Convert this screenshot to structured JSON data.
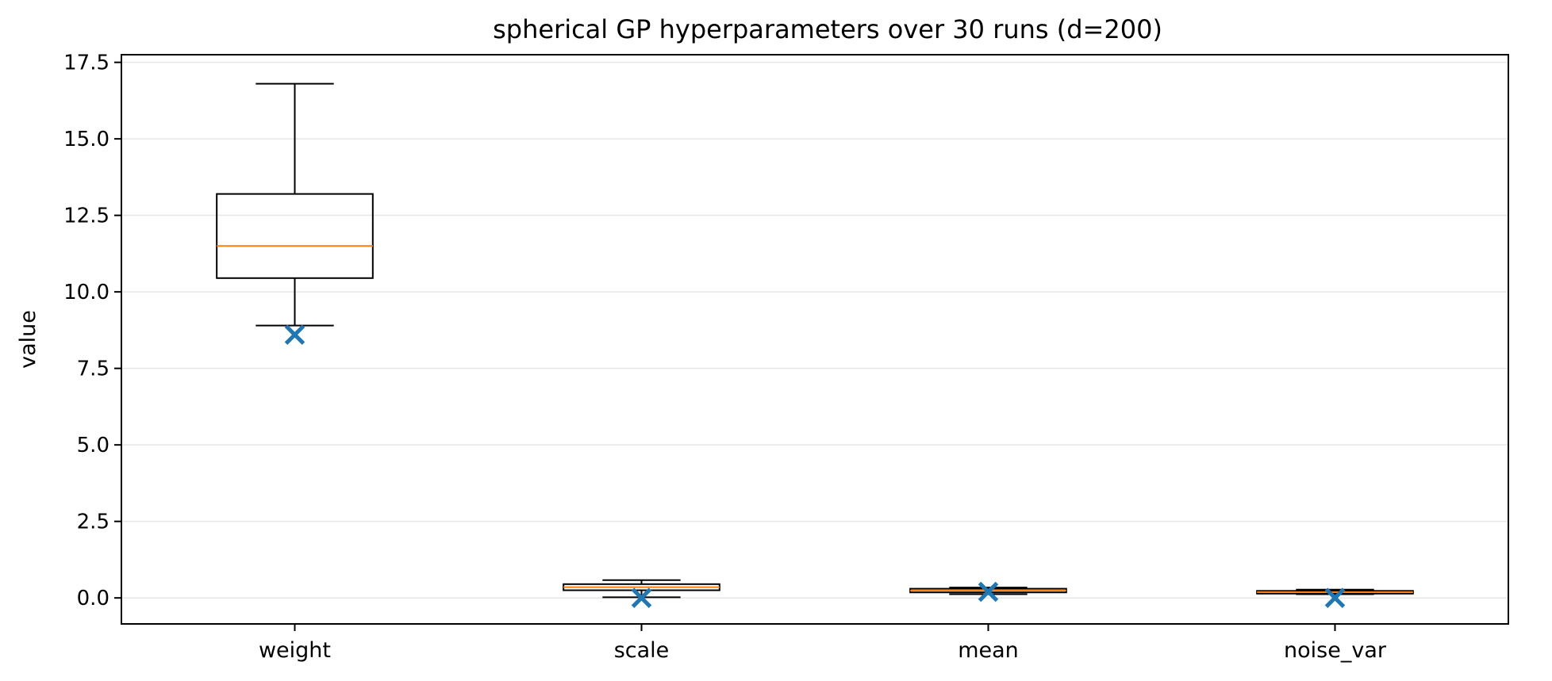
{
  "chart_data": {
    "type": "box",
    "title": "spherical GP hyperparameters over 30 runs (d=200)",
    "xlabel": "",
    "ylabel": "value",
    "ylim": [
      -0.85,
      17.75
    ],
    "yticks": [
      0.0,
      2.5,
      5.0,
      7.5,
      10.0,
      12.5,
      15.0,
      17.5
    ],
    "ytick_labels": [
      "0.0",
      "2.5",
      "5.0",
      "7.5",
      "10.0",
      "12.5",
      "15.0",
      "17.5"
    ],
    "grid": "y",
    "categories": [
      "weight",
      "scale",
      "mean",
      "noise_var"
    ],
    "boxes": [
      {
        "category": "weight",
        "whisker_low": 8.9,
        "q1": 10.45,
        "median": 11.5,
        "q3": 13.2,
        "whisker_high": 16.8
      },
      {
        "category": "scale",
        "whisker_low": 0.02,
        "q1": 0.25,
        "median": 0.35,
        "q3": 0.45,
        "whisker_high": 0.58
      },
      {
        "category": "mean",
        "whisker_low": 0.12,
        "q1": 0.18,
        "median": 0.24,
        "q3": 0.3,
        "whisker_high": 0.34
      },
      {
        "category": "noise_var",
        "whisker_low": 0.12,
        "q1": 0.14,
        "median": 0.19,
        "q3": 0.23,
        "whisker_high": 0.27
      }
    ],
    "markers": [
      {
        "category": "weight",
        "value": 8.6
      },
      {
        "category": "scale",
        "value": 0.0
      },
      {
        "category": "mean",
        "value": 0.2
      },
      {
        "category": "noise_var",
        "value": 0.0
      }
    ],
    "colors": {
      "box": "#000000",
      "median": "#ff7f0e",
      "marker": "#1f77b4",
      "grid": "#e6e6e6"
    }
  }
}
